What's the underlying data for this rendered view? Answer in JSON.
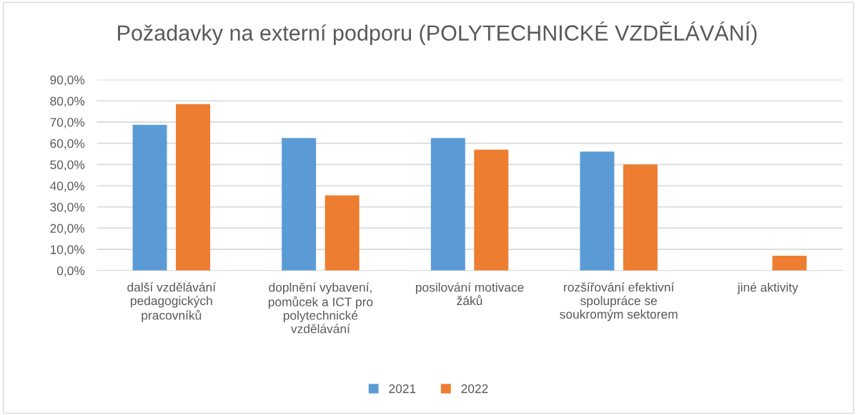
{
  "chart_data": {
    "type": "bar",
    "title": "Požadavky na externí podporu (POLYTECHNICKÉ VZDĚLÁVÁNÍ)",
    "categories": [
      "další vzdělávání\npedagogických\npracovníků",
      "doplnění vybavení,\npomůcek a ICT pro\npolytechnické\nvzdělávání",
      "posilování motivace\nžáků",
      "rozšířování efektivní\nspolupráce se\nsoukromým sektorem",
      "jiné aktivity"
    ],
    "series": [
      {
        "name": "2021",
        "color": "#5b9bd5",
        "values": [
          68.7,
          62.5,
          62.5,
          56.1,
          0
        ]
      },
      {
        "name": "2022",
        "color": "#ed7d31",
        "values": [
          78.5,
          35.5,
          57.0,
          50.0,
          7.0
        ]
      }
    ],
    "ylim": [
      0,
      90
    ],
    "yticks": [
      {
        "value": 0,
        "label": "0,0%"
      },
      {
        "value": 10,
        "label": "10,0%"
      },
      {
        "value": 20,
        "label": "20,0%"
      },
      {
        "value": 30,
        "label": "30,0%"
      },
      {
        "value": 40,
        "label": "40,0%"
      },
      {
        "value": 50,
        "label": "50,0%"
      },
      {
        "value": 60,
        "label": "60,0%"
      },
      {
        "value": 70,
        "label": "70,0%"
      },
      {
        "value": 80,
        "label": "80,0%"
      },
      {
        "value": 90,
        "label": "90,0%"
      }
    ],
    "grid": "y",
    "legend": "bottom"
  }
}
